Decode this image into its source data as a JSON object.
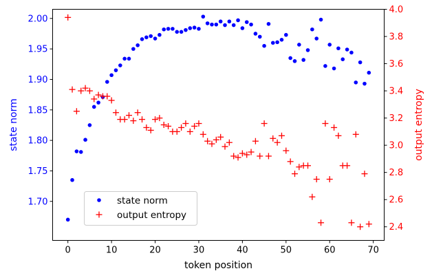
{
  "chart_data": {
    "type": "scatter",
    "title": "",
    "xlabel": "token position",
    "ylabel_left": "state norm",
    "ylabel_right": "output entropy",
    "xlim": [
      -3.5,
      72.5
    ],
    "ylim_left": [
      1.636,
      2.015
    ],
    "ylim_right": [
      2.3,
      4.0
    ],
    "x_ticks": [
      0,
      10,
      20,
      30,
      40,
      50,
      60,
      70
    ],
    "y_ticks_left": [
      1.7,
      1.75,
      1.8,
      1.85,
      1.9,
      1.95,
      2.0
    ],
    "y_ticks_right": [
      2.4,
      2.6,
      2.8,
      3.0,
      3.2,
      3.4,
      3.6,
      3.8,
      4.0
    ],
    "x_tick_labels": [
      "0",
      "10",
      "20",
      "30",
      "40",
      "50",
      "60",
      "70"
    ],
    "y_tick_labels_left": [
      "1.70",
      "1.75",
      "1.80",
      "1.85",
      "1.90",
      "1.95",
      "2.00"
    ],
    "y_tick_labels_right": [
      "2.4",
      "2.6",
      "2.8",
      "3.0",
      "3.2",
      "3.4",
      "3.6",
      "3.8",
      "4.0"
    ],
    "grid": false,
    "legend": {
      "placement": "lower-left",
      "entries": [
        "state norm",
        "output entropy"
      ]
    },
    "colors": {
      "left": "#0000ff",
      "right": "#ff0000"
    },
    "series": [
      {
        "name": "state norm",
        "axis": "left",
        "marker": "dot",
        "color": "#0000ff",
        "x": [
          0,
          1,
          2,
          3,
          4,
          5,
          6,
          7,
          8,
          9,
          10,
          11,
          12,
          13,
          14,
          15,
          16,
          17,
          18,
          19,
          20,
          21,
          22,
          23,
          24,
          25,
          26,
          27,
          28,
          29,
          30,
          31,
          32,
          33,
          34,
          35,
          36,
          37,
          38,
          39,
          40,
          41,
          42,
          43,
          44,
          45,
          46,
          47,
          48,
          49,
          50,
          51,
          52,
          53,
          54,
          55,
          56,
          57,
          58,
          59,
          60,
          61,
          62,
          63,
          64,
          65,
          66,
          67,
          68,
          69
        ],
        "y": [
          1.67,
          1.735,
          1.782,
          1.781,
          1.801,
          1.825,
          1.855,
          1.862,
          1.871,
          1.896,
          1.907,
          1.915,
          1.923,
          1.934,
          1.934,
          1.95,
          1.956,
          1.966,
          1.969,
          1.971,
          1.967,
          1.973,
          1.982,
          1.983,
          1.983,
          1.978,
          1.978,
          1.981,
          1.984,
          1.985,
          1.983,
          2.003,
          1.992,
          1.99,
          1.99,
          1.995,
          1.989,
          1.995,
          1.989,
          1.997,
          1.984,
          1.994,
          1.99,
          1.975,
          1.97,
          1.955,
          1.991,
          1.96,
          1.961,
          1.965,
          1.973,
          1.935,
          1.93,
          1.957,
          1.932,
          1.948,
          1.982,
          1.967,
          1.998,
          1.922,
          1.957,
          1.918,
          1.951,
          1.933,
          1.949,
          1.944,
          1.895,
          1.928,
          1.893,
          1.911
        ]
      },
      {
        "name": "output entropy",
        "axis": "right",
        "marker": "plus",
        "color": "#ff0000",
        "x": [
          0,
          1,
          2,
          3,
          4,
          5,
          6,
          7,
          8,
          9,
          10,
          11,
          12,
          13,
          14,
          15,
          16,
          17,
          18,
          19,
          20,
          21,
          22,
          23,
          24,
          25,
          26,
          27,
          28,
          29,
          30,
          31,
          32,
          33,
          34,
          35,
          36,
          37,
          38,
          39,
          40,
          41,
          42,
          43,
          44,
          45,
          46,
          47,
          48,
          49,
          50,
          51,
          52,
          53,
          54,
          55,
          56,
          57,
          58,
          59,
          60,
          61,
          62,
          63,
          64,
          65,
          66,
          67,
          68,
          69
        ],
        "y": [
          3.94,
          3.41,
          3.25,
          3.4,
          3.42,
          3.4,
          3.34,
          3.37,
          3.36,
          3.36,
          3.33,
          3.24,
          3.19,
          3.19,
          3.22,
          3.18,
          3.24,
          3.19,
          3.13,
          3.11,
          3.19,
          3.2,
          3.15,
          3.14,
          3.1,
          3.1,
          3.13,
          3.16,
          3.1,
          3.14,
          3.16,
          3.08,
          3.03,
          3.01,
          3.04,
          3.06,
          2.99,
          3.02,
          2.92,
          2.91,
          2.94,
          2.93,
          2.95,
          3.03,
          2.92,
          3.16,
          2.92,
          3.05,
          3.02,
          3.07,
          2.96,
          2.88,
          2.79,
          2.84,
          2.85,
          2.85,
          2.62,
          2.75,
          2.43,
          3.16,
          2.75,
          3.13,
          3.07,
          2.85,
          2.85,
          2.43,
          3.08,
          2.4,
          2.79,
          2.42
        ]
      }
    ]
  }
}
